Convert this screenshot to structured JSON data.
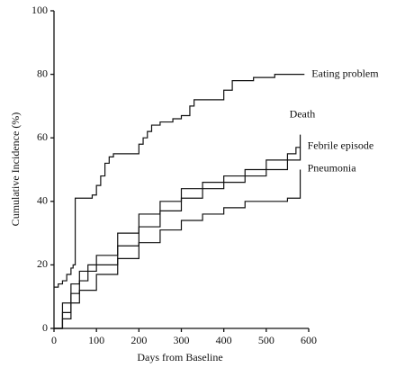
{
  "chart_data": {
    "type": "line",
    "step": true,
    "xlabel": "Days from Baseline",
    "ylabel": "Cumulative Incidence  (%)",
    "xlim": [
      0,
      600
    ],
    "xticks": [
      0,
      100,
      200,
      300,
      400,
      500,
      600
    ],
    "ylim": [
      0,
      100
    ],
    "yticks": [
      0,
      20,
      40,
      60,
      80,
      100
    ],
    "series": [
      {
        "name": "Eating problem",
        "color": "#111111",
        "x": [
          0,
          10,
          20,
          30,
          40,
          45,
          50,
          60,
          90,
          100,
          110,
          120,
          130,
          140,
          180,
          200,
          210,
          220,
          230,
          250,
          280,
          300,
          320,
          330,
          380,
          400,
          420,
          460,
          470,
          500,
          520,
          590
        ],
        "values": [
          13,
          14,
          15,
          17,
          19,
          20,
          41,
          41,
          42,
          45,
          48,
          52,
          54,
          55,
          55,
          58,
          60,
          62,
          64,
          65,
          66,
          67,
          70,
          72,
          72,
          75,
          78,
          78,
          79,
          79,
          80,
          80
        ]
      },
      {
        "name": "Death",
        "color": "#111111",
        "x": [
          0,
          20,
          40,
          60,
          80,
          100,
          150,
          200,
          250,
          300,
          350,
          400,
          450,
          500,
          550,
          570,
          580
        ],
        "values": [
          0,
          8,
          14,
          18,
          20,
          23,
          30,
          36,
          40,
          44,
          46,
          48,
          50,
          53,
          55,
          57,
          61
        ]
      },
      {
        "name": "Febrile episode",
        "color": "#111111",
        "x": [
          0,
          20,
          40,
          60,
          80,
          100,
          150,
          200,
          250,
          300,
          350,
          400,
          450,
          500,
          550,
          580
        ],
        "values": [
          0,
          5,
          11,
          15,
          18,
          20,
          26,
          32,
          37,
          41,
          44,
          46,
          48,
          50,
          53,
          57
        ]
      },
      {
        "name": "Pneumonia",
        "color": "#111111",
        "x": [
          0,
          20,
          40,
          60,
          100,
          150,
          200,
          250,
          300,
          350,
          400,
          450,
          500,
          550,
          570,
          580
        ],
        "values": [
          0,
          3,
          8,
          12,
          17,
          22,
          27,
          31,
          34,
          36,
          38,
          40,
          40,
          41,
          41,
          50
        ]
      }
    ]
  }
}
